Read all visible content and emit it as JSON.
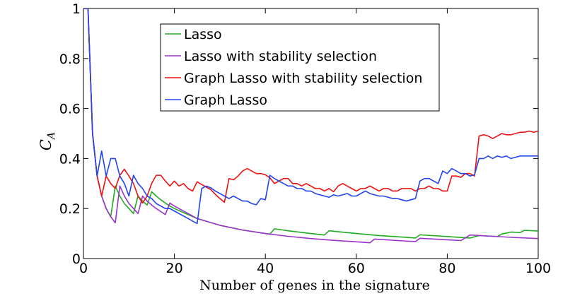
{
  "chart_data": {
    "type": "line",
    "title": "",
    "xlabel": "Number of genes in the signature",
    "ylabel": "C",
    "ylabel_subscript": "A",
    "xlim": [
      0,
      100
    ],
    "ylim": [
      0,
      1
    ],
    "xticks": [
      0,
      20,
      40,
      60,
      80,
      100
    ],
    "yticks": [
      0,
      0.2,
      0.4,
      0.6,
      0.8,
      1
    ],
    "xtick_labels": [
      "0",
      "20",
      "40",
      "60",
      "80",
      "100"
    ],
    "ytick_labels": [
      "0",
      "0.2",
      "0.4",
      "0.6",
      "0.8",
      "1"
    ],
    "grid": false,
    "legend_position": "top-center",
    "series": [
      {
        "name": "Lasso",
        "color": "#22aa22",
        "points": [
          [
            0,
            1
          ],
          [
            1,
            1
          ],
          [
            2,
            0.5
          ],
          [
            3,
            0.33
          ],
          [
            4,
            0.25
          ],
          [
            5,
            0.2
          ],
          [
            6,
            0.167
          ],
          [
            7,
            0.29
          ],
          [
            8,
            0.25
          ],
          [
            9,
            0.22
          ],
          [
            10,
            0.2
          ],
          [
            11,
            0.18
          ],
          [
            12,
            0.25
          ],
          [
            13,
            0.23
          ],
          [
            14,
            0.214
          ],
          [
            15,
            0.267
          ],
          [
            16,
            0.25
          ],
          [
            17,
            0.235
          ],
          [
            18,
            0.222
          ],
          [
            19,
            0.21
          ],
          [
            20,
            0.2
          ],
          [
            25,
            0.16
          ],
          [
            30,
            0.133
          ],
          [
            35,
            0.114
          ],
          [
            40,
            0.1
          ],
          [
            41,
            0.098
          ],
          [
            42,
            0.119
          ],
          [
            45,
            0.111
          ],
          [
            50,
            0.1
          ],
          [
            53,
            0.094
          ],
          [
            54,
            0.111
          ],
          [
            60,
            0.1
          ],
          [
            65,
            0.092
          ],
          [
            70,
            0.086
          ],
          [
            73,
            0.082
          ],
          [
            74,
            0.095
          ],
          [
            80,
            0.088
          ],
          [
            85,
            0.082
          ],
          [
            87,
            0.092
          ],
          [
            90,
            0.089
          ],
          [
            91,
            0.088
          ],
          [
            92,
            0.098
          ],
          [
            94,
            0.106
          ],
          [
            96,
            0.104
          ],
          [
            97,
            0.113
          ],
          [
            100,
            0.11
          ]
        ]
      },
      {
        "name": "Lasso with stability selection",
        "color": "#9933cc",
        "points": [
          [
            0,
            1
          ],
          [
            1,
            1
          ],
          [
            2,
            0.5
          ],
          [
            3,
            0.33
          ],
          [
            4,
            0.25
          ],
          [
            5,
            0.2
          ],
          [
            6,
            0.167
          ],
          [
            7,
            0.143
          ],
          [
            8,
            0.29
          ],
          [
            9,
            0.25
          ],
          [
            10,
            0.22
          ],
          [
            11,
            0.2
          ],
          [
            12,
            0.18
          ],
          [
            13,
            0.25
          ],
          [
            14,
            0.23
          ],
          [
            15,
            0.214
          ],
          [
            16,
            0.2
          ],
          [
            17,
            0.188
          ],
          [
            18,
            0.176
          ],
          [
            19,
            0.222
          ],
          [
            20,
            0.21
          ],
          [
            25,
            0.16
          ],
          [
            30,
            0.133
          ],
          [
            35,
            0.114
          ],
          [
            40,
            0.1
          ],
          [
            45,
            0.089
          ],
          [
            50,
            0.08
          ],
          [
            55,
            0.073
          ],
          [
            60,
            0.067
          ],
          [
            63,
            0.063
          ],
          [
            64,
            0.078
          ],
          [
            70,
            0.071
          ],
          [
            73,
            0.068
          ],
          [
            74,
            0.081
          ],
          [
            80,
            0.075
          ],
          [
            83,
            0.072
          ],
          [
            84,
            0.083
          ],
          [
            85,
            0.094
          ],
          [
            90,
            0.089
          ],
          [
            95,
            0.084
          ],
          [
            100,
            0.08
          ]
        ]
      },
      {
        "name": "Graph Lasso with stability selection",
        "color": "#ee1111",
        "points": [
          [
            0,
            1
          ],
          [
            1,
            1
          ],
          [
            2,
            0.5
          ],
          [
            3,
            0.33
          ],
          [
            4,
            0.25
          ],
          [
            5,
            0.33
          ],
          [
            6,
            0.3
          ],
          [
            7,
            0.28
          ],
          [
            8,
            0.333
          ],
          [
            9,
            0.357
          ],
          [
            10,
            0.33
          ],
          [
            11,
            0.3
          ],
          [
            12,
            0.25
          ],
          [
            13,
            0.222
          ],
          [
            14,
            0.25
          ],
          [
            15,
            0.3
          ],
          [
            16,
            0.333
          ],
          [
            17,
            0.333
          ],
          [
            18,
            0.31
          ],
          [
            19,
            0.29
          ],
          [
            20,
            0.31
          ],
          [
            21,
            0.29
          ],
          [
            22,
            0.3
          ],
          [
            23,
            0.28
          ],
          [
            24,
            0.27
          ],
          [
            25,
            0.307
          ],
          [
            26,
            0.296
          ],
          [
            27,
            0.286
          ],
          [
            28,
            0.276
          ],
          [
            29,
            0.257
          ],
          [
            30,
            0.24
          ],
          [
            31,
            0.225
          ],
          [
            32,
            0.32
          ],
          [
            33,
            0.315
          ],
          [
            34,
            0.33
          ],
          [
            35,
            0.35
          ],
          [
            36,
            0.36
          ],
          [
            37,
            0.35
          ],
          [
            38,
            0.34
          ],
          [
            39,
            0.34
          ],
          [
            40,
            0.335
          ],
          [
            41,
            0.323
          ],
          [
            42,
            0.3
          ],
          [
            43,
            0.31
          ],
          [
            44,
            0.32
          ],
          [
            45,
            0.32
          ],
          [
            46,
            0.3
          ],
          [
            47,
            0.3
          ],
          [
            48,
            0.29
          ],
          [
            49,
            0.3
          ],
          [
            50,
            0.29
          ],
          [
            51,
            0.28
          ],
          [
            52,
            0.28
          ],
          [
            53,
            0.27
          ],
          [
            54,
            0.28
          ],
          [
            55,
            0.267
          ],
          [
            56,
            0.29
          ],
          [
            57,
            0.3
          ],
          [
            58,
            0.29
          ],
          [
            59,
            0.28
          ],
          [
            60,
            0.27
          ],
          [
            61,
            0.28
          ],
          [
            62,
            0.28
          ],
          [
            63,
            0.29
          ],
          [
            64,
            0.28
          ],
          [
            65,
            0.27
          ],
          [
            66,
            0.28
          ],
          [
            67,
            0.28
          ],
          [
            68,
            0.27
          ],
          [
            69,
            0.27
          ],
          [
            70,
            0.28
          ],
          [
            71,
            0.28
          ],
          [
            72,
            0.28
          ],
          [
            73,
            0.27
          ],
          [
            74,
            0.28
          ],
          [
            75,
            0.28
          ],
          [
            76,
            0.29
          ],
          [
            77,
            0.28
          ],
          [
            78,
            0.28
          ],
          [
            79,
            0.27
          ],
          [
            80,
            0.27
          ],
          [
            81,
            0.33
          ],
          [
            82,
            0.33
          ],
          [
            83,
            0.325
          ],
          [
            84,
            0.34
          ],
          [
            85,
            0.34
          ],
          [
            86,
            0.33
          ],
          [
            87,
            0.49
          ],
          [
            88,
            0.495
          ],
          [
            89,
            0.49
          ],
          [
            90,
            0.48
          ],
          [
            91,
            0.49
          ],
          [
            92,
            0.5
          ],
          [
            93,
            0.495
          ],
          [
            94,
            0.495
          ],
          [
            95,
            0.5
          ],
          [
            96,
            0.505
          ],
          [
            97,
            0.505
          ],
          [
            98,
            0.51
          ],
          [
            99,
            0.505
          ],
          [
            100,
            0.51
          ]
        ]
      },
      {
        "name": "Graph Lasso",
        "color": "#2244ee",
        "points": [
          [
            0,
            1
          ],
          [
            1,
            1
          ],
          [
            2,
            0.5
          ],
          [
            3,
            0.33
          ],
          [
            4,
            0.43
          ],
          [
            5,
            0.33
          ],
          [
            6,
            0.4
          ],
          [
            7,
            0.4
          ],
          [
            8,
            0.33
          ],
          [
            9,
            0.3
          ],
          [
            10,
            0.25
          ],
          [
            11,
            0.333
          ],
          [
            12,
            0.3
          ],
          [
            13,
            0.28
          ],
          [
            14,
            0.25
          ],
          [
            15,
            0.24
          ],
          [
            16,
            0.22
          ],
          [
            17,
            0.21
          ],
          [
            18,
            0.2
          ],
          [
            19,
            0.2
          ],
          [
            20,
            0.19
          ],
          [
            21,
            0.18
          ],
          [
            22,
            0.17
          ],
          [
            23,
            0.16
          ],
          [
            24,
            0.15
          ],
          [
            25,
            0.14
          ],
          [
            26,
            0.28
          ],
          [
            27,
            0.29
          ],
          [
            28,
            0.283
          ],
          [
            29,
            0.27
          ],
          [
            30,
            0.26
          ],
          [
            31,
            0.25
          ],
          [
            32,
            0.24
          ],
          [
            33,
            0.25
          ],
          [
            34,
            0.24
          ],
          [
            35,
            0.23
          ],
          [
            36,
            0.23
          ],
          [
            37,
            0.22
          ],
          [
            38,
            0.215
          ],
          [
            39,
            0.24
          ],
          [
            40,
            0.235
          ],
          [
            41,
            0.333
          ],
          [
            42,
            0.32
          ],
          [
            43,
            0.31
          ],
          [
            44,
            0.3
          ],
          [
            45,
            0.29
          ],
          [
            46,
            0.29
          ],
          [
            47,
            0.28
          ],
          [
            48,
            0.28
          ],
          [
            49,
            0.27
          ],
          [
            50,
            0.27
          ],
          [
            51,
            0.26
          ],
          [
            52,
            0.255
          ],
          [
            53,
            0.25
          ],
          [
            54,
            0.245
          ],
          [
            55,
            0.255
          ],
          [
            56,
            0.25
          ],
          [
            57,
            0.255
          ],
          [
            58,
            0.26
          ],
          [
            59,
            0.25
          ],
          [
            60,
            0.25
          ],
          [
            61,
            0.26
          ],
          [
            62,
            0.27
          ],
          [
            63,
            0.26
          ],
          [
            64,
            0.255
          ],
          [
            65,
            0.25
          ],
          [
            66,
            0.25
          ],
          [
            67,
            0.245
          ],
          [
            68,
            0.24
          ],
          [
            69,
            0.24
          ],
          [
            70,
            0.235
          ],
          [
            71,
            0.23
          ],
          [
            72,
            0.235
          ],
          [
            73,
            0.24
          ],
          [
            74,
            0.31
          ],
          [
            75,
            0.32
          ],
          [
            76,
            0.32
          ],
          [
            77,
            0.31
          ],
          [
            78,
            0.3
          ],
          [
            79,
            0.35
          ],
          [
            80,
            0.34
          ],
          [
            81,
            0.36
          ],
          [
            82,
            0.35
          ],
          [
            83,
            0.34
          ],
          [
            84,
            0.34
          ],
          [
            85,
            0.33
          ],
          [
            86,
            0.335
          ],
          [
            87,
            0.4
          ],
          [
            88,
            0.4
          ],
          [
            89,
            0.41
          ],
          [
            90,
            0.4
          ],
          [
            91,
            0.41
          ],
          [
            92,
            0.405
          ],
          [
            93,
            0.41
          ],
          [
            94,
            0.4
          ],
          [
            95,
            0.405
          ],
          [
            96,
            0.41
          ],
          [
            97,
            0.41
          ],
          [
            98,
            0.41
          ],
          [
            99,
            0.41
          ],
          [
            100,
            0.41
          ]
        ]
      }
    ]
  }
}
